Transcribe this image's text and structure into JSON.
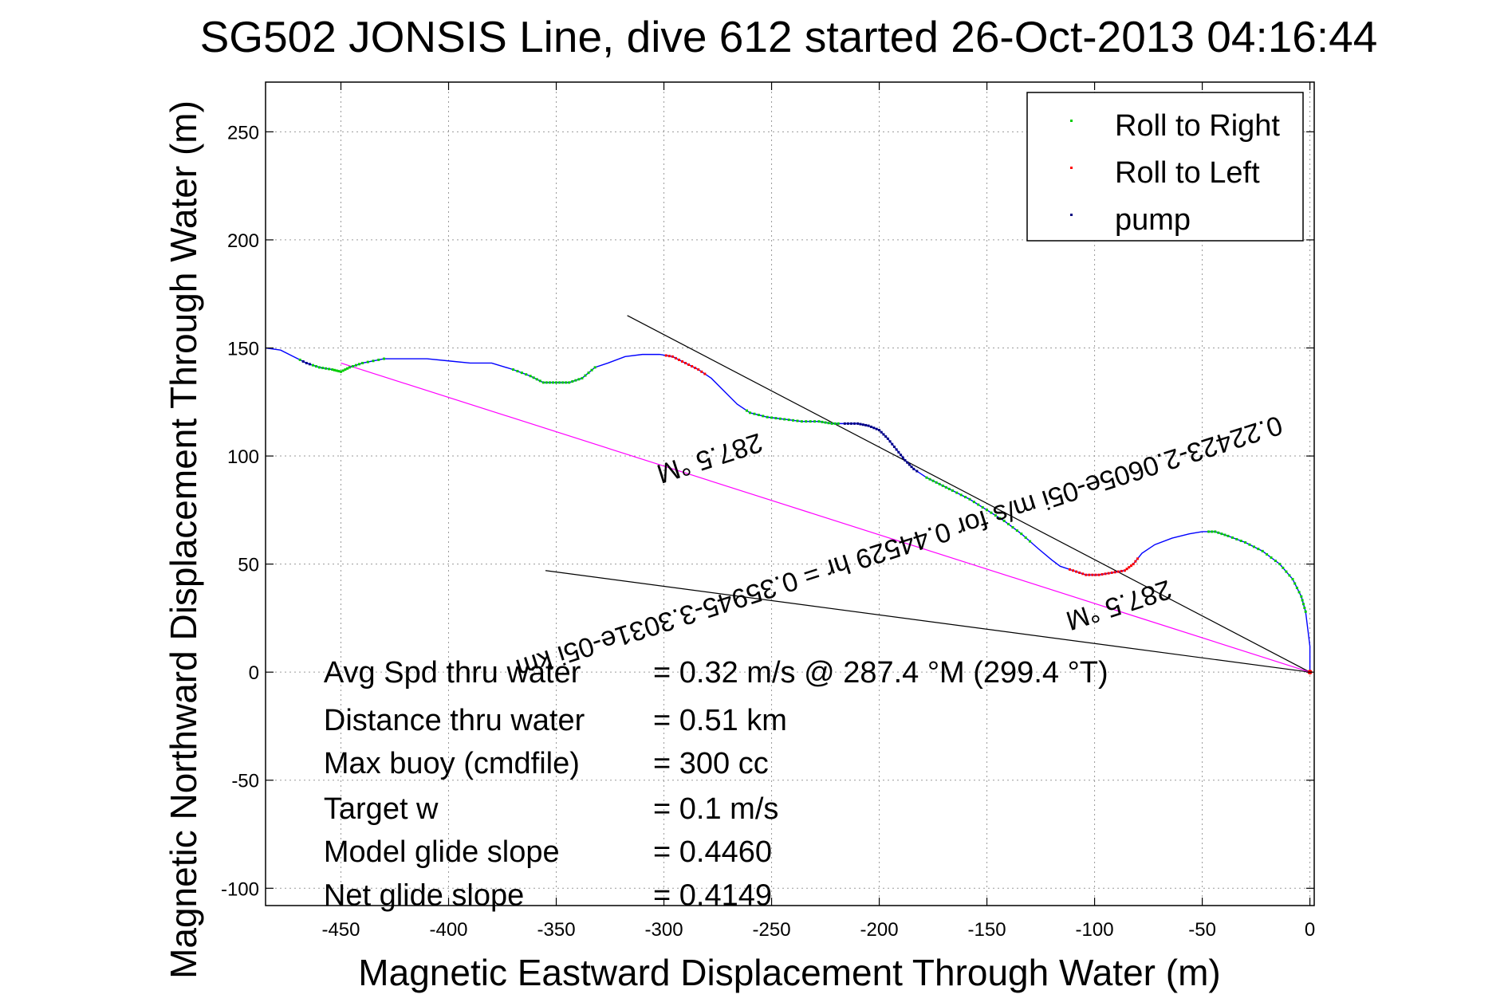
{
  "chart_data": {
    "type": "scatter",
    "title": "SG502 JONSIS Line, dive 612 started 26-Oct-2013 04:16:44",
    "xlabel": "Magnetic Eastward Displacement Through Water (m)",
    "ylabel": "Magnetic Northward Displacement Through Water (m)",
    "xlim": [
      -485,
      2
    ],
    "ylim": [
      -108,
      273
    ],
    "xticks": [
      -450,
      -400,
      -350,
      -300,
      -250,
      -200,
      -150,
      -100,
      -50,
      0
    ],
    "yticks": [
      -100,
      -50,
      0,
      50,
      100,
      150,
      200,
      250
    ],
    "grid": true,
    "legend_position": "top-right",
    "colors": {
      "track": "#0000ff",
      "roll_right": "#00cc00",
      "roll_left": "#ff0000",
      "pump": "#000080",
      "heading_line": "#ff00ff",
      "reference_lines": "#000000"
    },
    "legend": [
      {
        "name": "Roll to Right",
        "color": "#00cc00"
      },
      {
        "name": "Roll to Left",
        "color": "#ff0000"
      },
      {
        "name": "pump",
        "color": "#000080"
      }
    ],
    "track": [
      [
        -485,
        150
      ],
      [
        -478,
        149
      ],
      [
        -472,
        146
      ],
      [
        -466,
        143
      ],
      [
        -460,
        141
      ],
      [
        -454,
        140
      ],
      [
        -450,
        139
      ],
      [
        -446,
        141
      ],
      [
        -440,
        143
      ],
      [
        -430,
        145
      ],
      [
        -420,
        145
      ],
      [
        -410,
        145
      ],
      [
        -400,
        144
      ],
      [
        -390,
        143
      ],
      [
        -380,
        143
      ],
      [
        -370,
        140
      ],
      [
        -362,
        137
      ],
      [
        -356,
        134
      ],
      [
        -350,
        134
      ],
      [
        -344,
        134
      ],
      [
        -338,
        136
      ],
      [
        -332,
        141
      ],
      [
        -326,
        143
      ],
      [
        -318,
        146
      ],
      [
        -310,
        147
      ],
      [
        -302,
        147
      ],
      [
        -296,
        146
      ],
      [
        -290,
        143
      ],
      [
        -284,
        140
      ],
      [
        -278,
        136
      ],
      [
        -272,
        130
      ],
      [
        -266,
        124
      ],
      [
        -260,
        120
      ],
      [
        -252,
        118
      ],
      [
        -244,
        117
      ],
      [
        -236,
        116
      ],
      [
        -228,
        116
      ],
      [
        -222,
        115
      ],
      [
        -216,
        115
      ],
      [
        -210,
        115
      ],
      [
        -205,
        114
      ],
      [
        -200,
        112
      ],
      [
        -196,
        108
      ],
      [
        -192,
        103
      ],
      [
        -188,
        98
      ],
      [
        -184,
        94
      ],
      [
        -178,
        90
      ],
      [
        -172,
        87
      ],
      [
        -166,
        84
      ],
      [
        -158,
        80
      ],
      [
        -150,
        75
      ],
      [
        -142,
        70
      ],
      [
        -134,
        64
      ],
      [
        -126,
        57
      ],
      [
        -120,
        52
      ],
      [
        -116,
        49
      ],
      [
        -110,
        47
      ],
      [
        -104,
        45
      ],
      [
        -98,
        45
      ],
      [
        -92,
        46
      ],
      [
        -86,
        47
      ],
      [
        -82,
        50
      ],
      [
        -78,
        55
      ],
      [
        -72,
        59
      ],
      [
        -64,
        62
      ],
      [
        -56,
        64
      ],
      [
        -50,
        65
      ],
      [
        -44,
        65
      ],
      [
        -38,
        63
      ],
      [
        -30,
        60
      ],
      [
        -22,
        56
      ],
      [
        -14,
        50
      ],
      [
        -8,
        43
      ],
      [
        -4,
        35
      ],
      [
        -2,
        28
      ],
      [
        -1,
        20
      ],
      [
        0,
        12
      ],
      [
        0,
        6
      ],
      [
        0,
        0
      ]
    ],
    "roll_right_segments": [
      [
        -470,
        -430
      ],
      [
        -370,
        -332
      ],
      [
        -262,
        -218
      ],
      [
        -178,
        -130
      ],
      [
        -48,
        -2
      ]
    ],
    "roll_left_segments": [
      [
        -300,
        -280
      ],
      [
        -112,
        -80
      ]
    ],
    "pump_segments": [
      [
        -216,
        -182
      ],
      [
        -468,
        -464
      ]
    ],
    "start_point": [
      0,
      0
    ],
    "reference_lines": [
      {
        "from": [
          -317,
          165
        ],
        "to": [
          0,
          0
        ]
      },
      {
        "from": [
          -355,
          47
        ],
        "to": [
          0,
          0
        ]
      }
    ],
    "heading_line": {
      "from": [
        -450,
        143
      ],
      "to": [
        0,
        0
      ]
    },
    "annotations": [
      {
        "text": "0.22423-2.0605e-05i m/s for 0.44529 hr = 0.35945-3.3031e-05i km",
        "x": -192,
        "y": 62,
        "rotation": 162.2
      },
      {
        "text": "287.5 °M",
        "x": -280,
        "y": 103,
        "rotation": 162.2
      },
      {
        "text": "287.5 °M",
        "x": -90,
        "y": 35,
        "rotation": 162.2
      }
    ],
    "stats": [
      {
        "label": "Avg Spd thru water",
        "value": "=  0.32 m/s @ 287.4 °M (299.4 °T)",
        "y": 0
      },
      {
        "label": "Distance thru water",
        "value": "=  0.51 km",
        "y": -22
      },
      {
        "label": "Max buoy (cmdfile)",
        "value": "= 300 cc",
        "y": -42
      },
      {
        "label": "Target w",
        "value": "= 0.1 m/s",
        "y": -63
      },
      {
        "label": "Model glide slope",
        "value": "= 0.4460",
        "y": -83
      },
      {
        "label": "Net glide slope",
        "value": "= 0.4149",
        "y": -103
      }
    ]
  }
}
